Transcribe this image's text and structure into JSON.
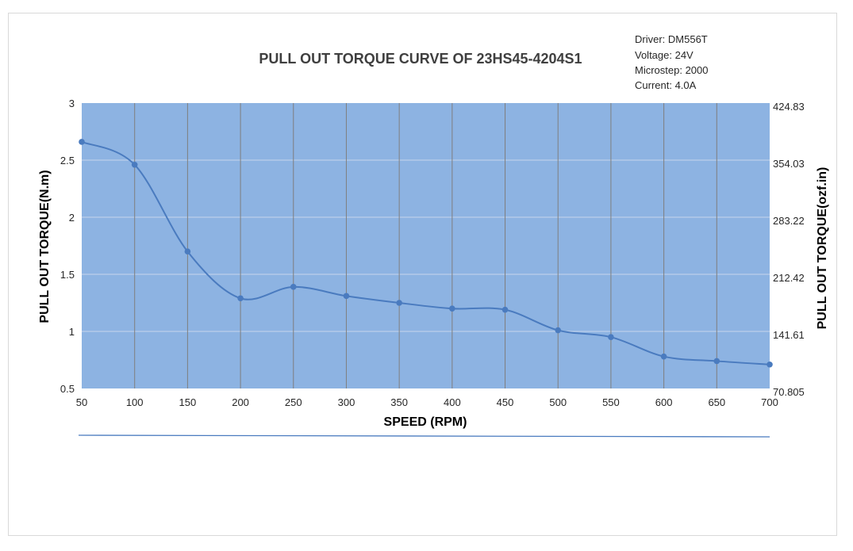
{
  "chart_data": {
    "type": "line",
    "title": "PULL OUT TORQUE  CURVE OF 23HS45-4204S1",
    "notes": [
      "Driver: DM556T",
      "Voltage: 24V",
      "Microstep: 2000",
      "Current: 4.0A"
    ],
    "xlabel": "SPEED (RPM)",
    "ylabel": "PULL OUT TORQUE(N.m)",
    "y2label": "PULL OUT TORQUE(ozf.in)",
    "x": [
      50,
      100,
      150,
      200,
      250,
      300,
      350,
      400,
      450,
      500,
      550,
      600,
      650,
      700
    ],
    "series": [
      {
        "values": [
          2.66,
          2.46,
          1.7,
          1.29,
          1.39,
          1.31,
          1.25,
          1.2,
          1.19,
          1.01,
          0.95,
          0.78,
          0.74,
          0.71
        ]
      }
    ],
    "xlim": [
      50,
      700
    ],
    "ylim": [
      0.5,
      3
    ],
    "yticks": [
      "0.5",
      "1",
      "1.5",
      "2",
      "2.5",
      "3"
    ],
    "y2ticks": [
      "70.805",
      "141.61",
      "212.42",
      "283.22",
      "354.03",
      "424.83"
    ],
    "grid": true,
    "colors": {
      "plot_bg": "#8db3e2",
      "line": "#4a7bbf",
      "grid_h": "#c6d6ec",
      "grid_v": "#7f7f7f"
    }
  }
}
